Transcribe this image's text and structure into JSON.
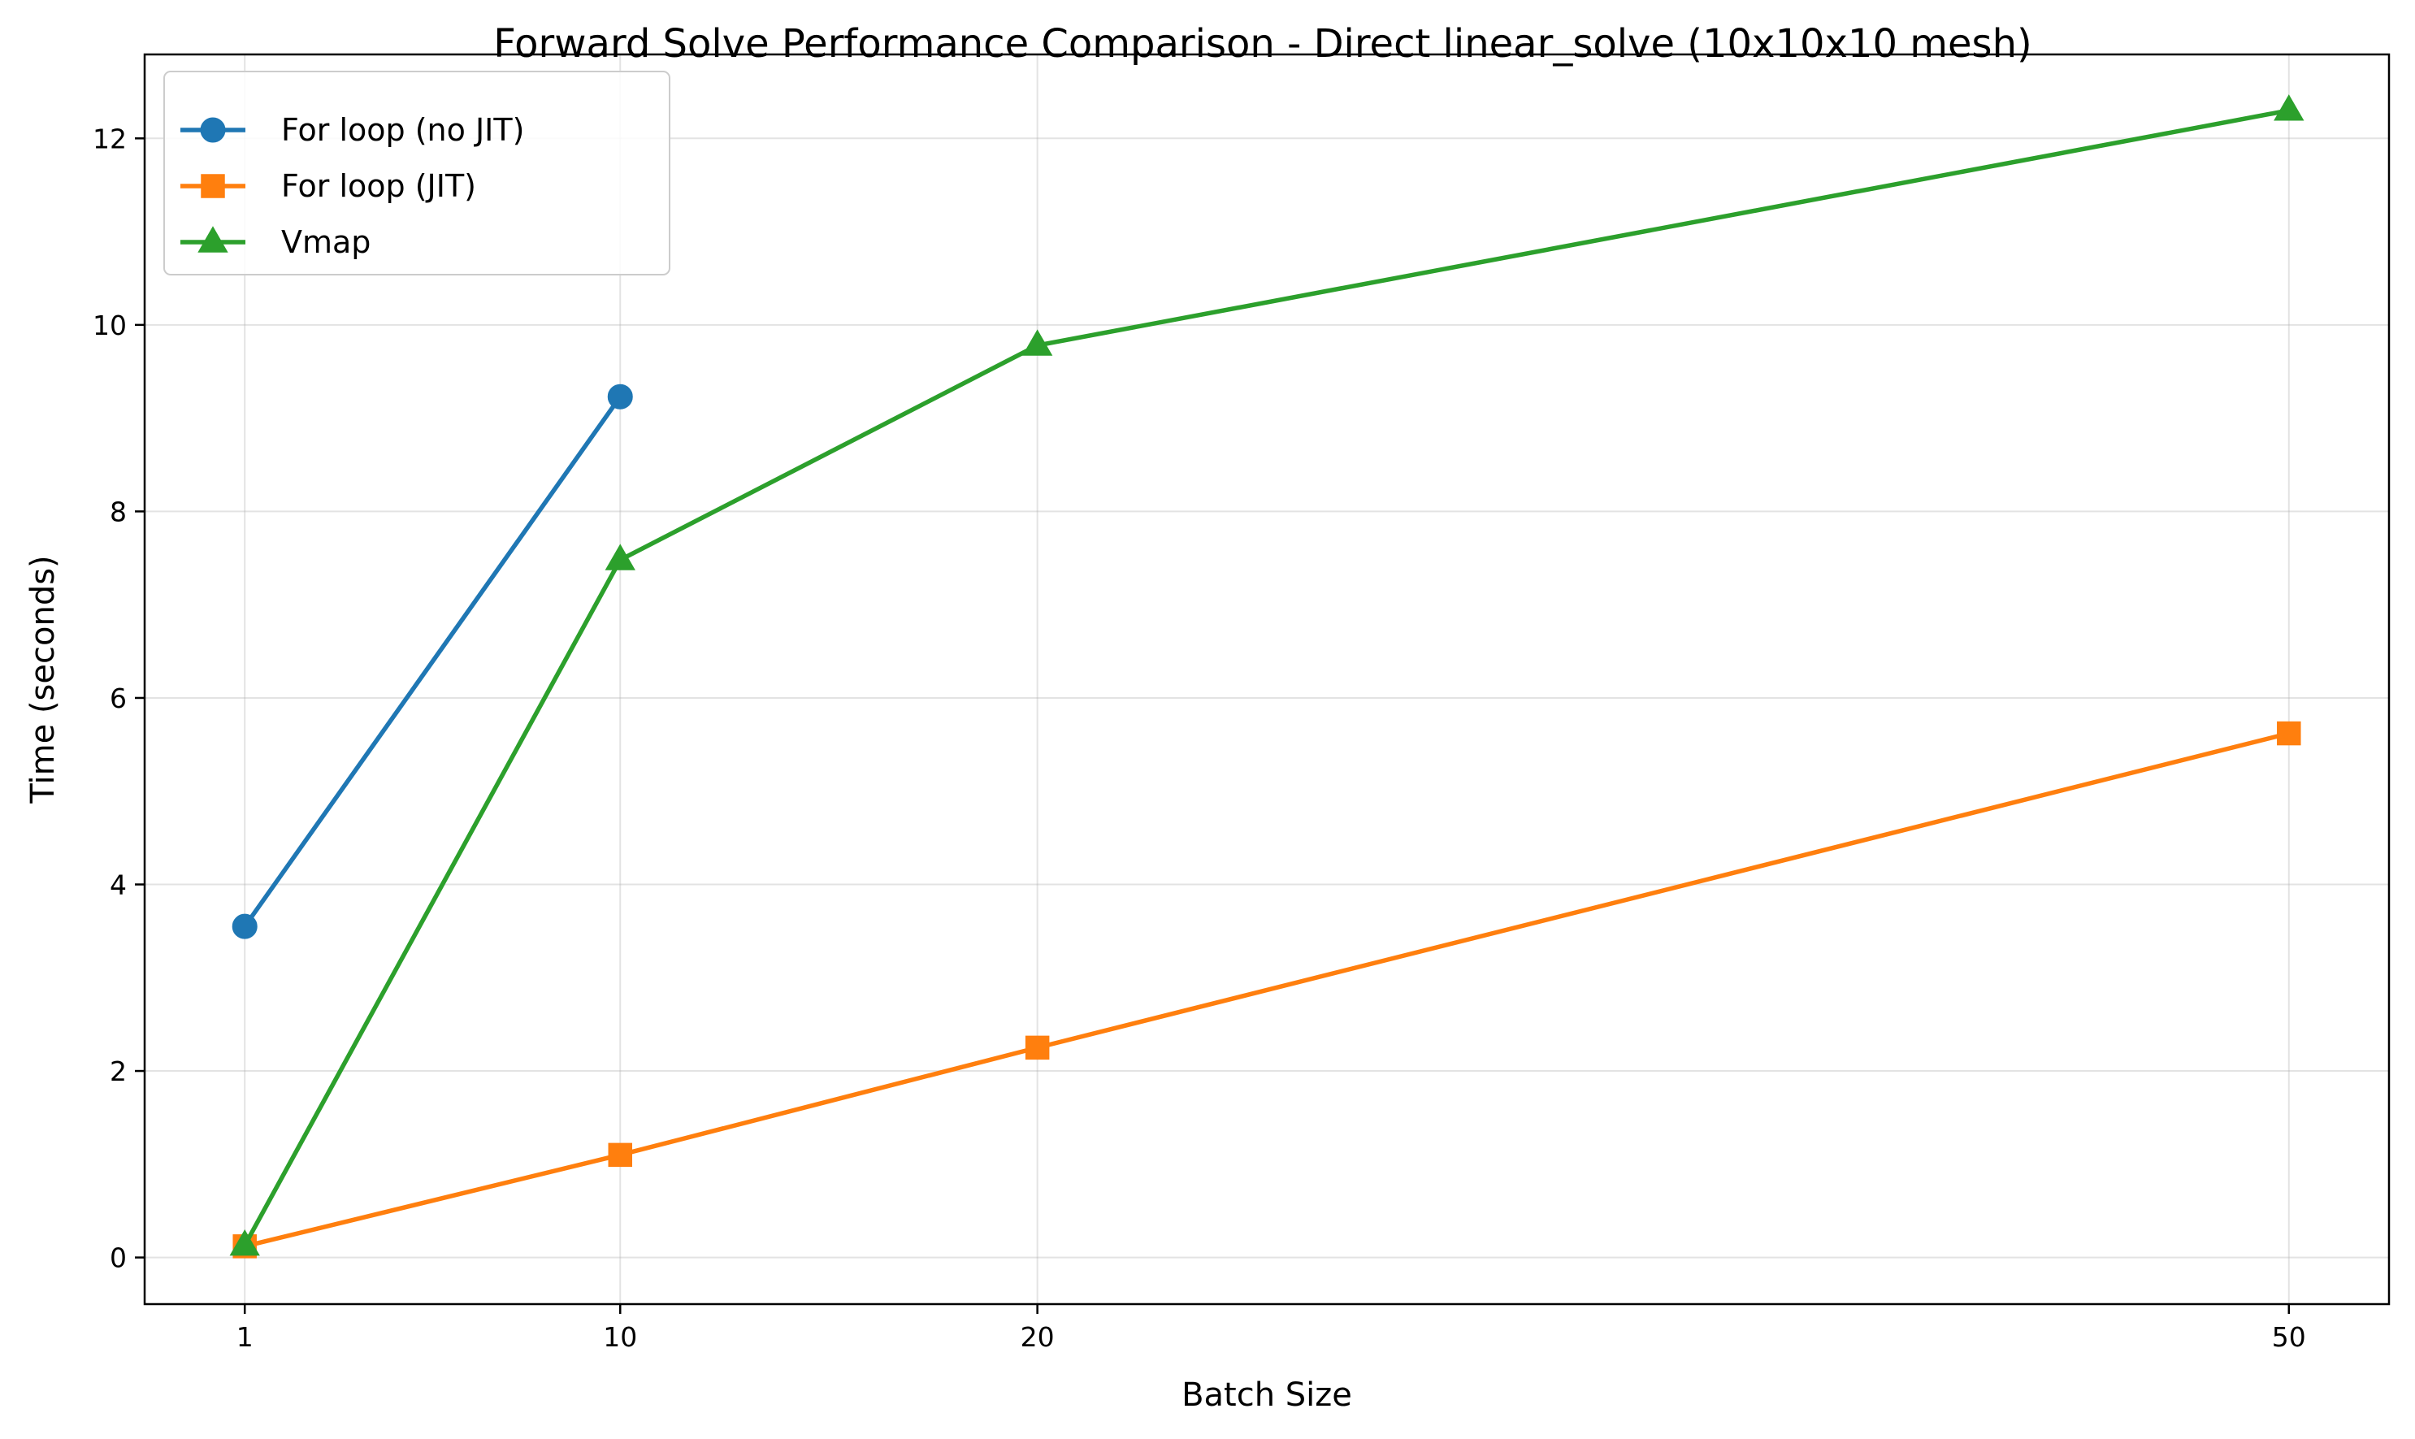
{
  "chart_data": {
    "type": "line",
    "title": "Forward Solve Performance Comparison - Direct linear_solve (10x10x10 mesh)",
    "xlabel": "Batch Size",
    "ylabel": "Time (seconds)",
    "x_ticks": [
      1,
      10,
      20,
      50
    ],
    "y_ticks": [
      0,
      2,
      4,
      6,
      8,
      10,
      12
    ],
    "xlim": [
      -1.4,
      52.4
    ],
    "ylim": [
      -0.5,
      12.9
    ],
    "grid": true,
    "legend_position": "top-left",
    "series": [
      {
        "name": "For loop (no JIT)",
        "color": "#1f77b4",
        "marker": "circle",
        "x": [
          1,
          10
        ],
        "y": [
          3.55,
          9.23
        ]
      },
      {
        "name": "For loop (JIT)",
        "color": "#ff7f0e",
        "marker": "square",
        "x": [
          1,
          10,
          20,
          50
        ],
        "y": [
          0.12,
          1.1,
          2.25,
          5.62
        ]
      },
      {
        "name": "Vmap",
        "color": "#2ca02c",
        "marker": "triangle",
        "x": [
          1,
          10,
          20,
          50
        ],
        "y": [
          0.13,
          7.48,
          9.78,
          12.3
        ]
      }
    ]
  }
}
